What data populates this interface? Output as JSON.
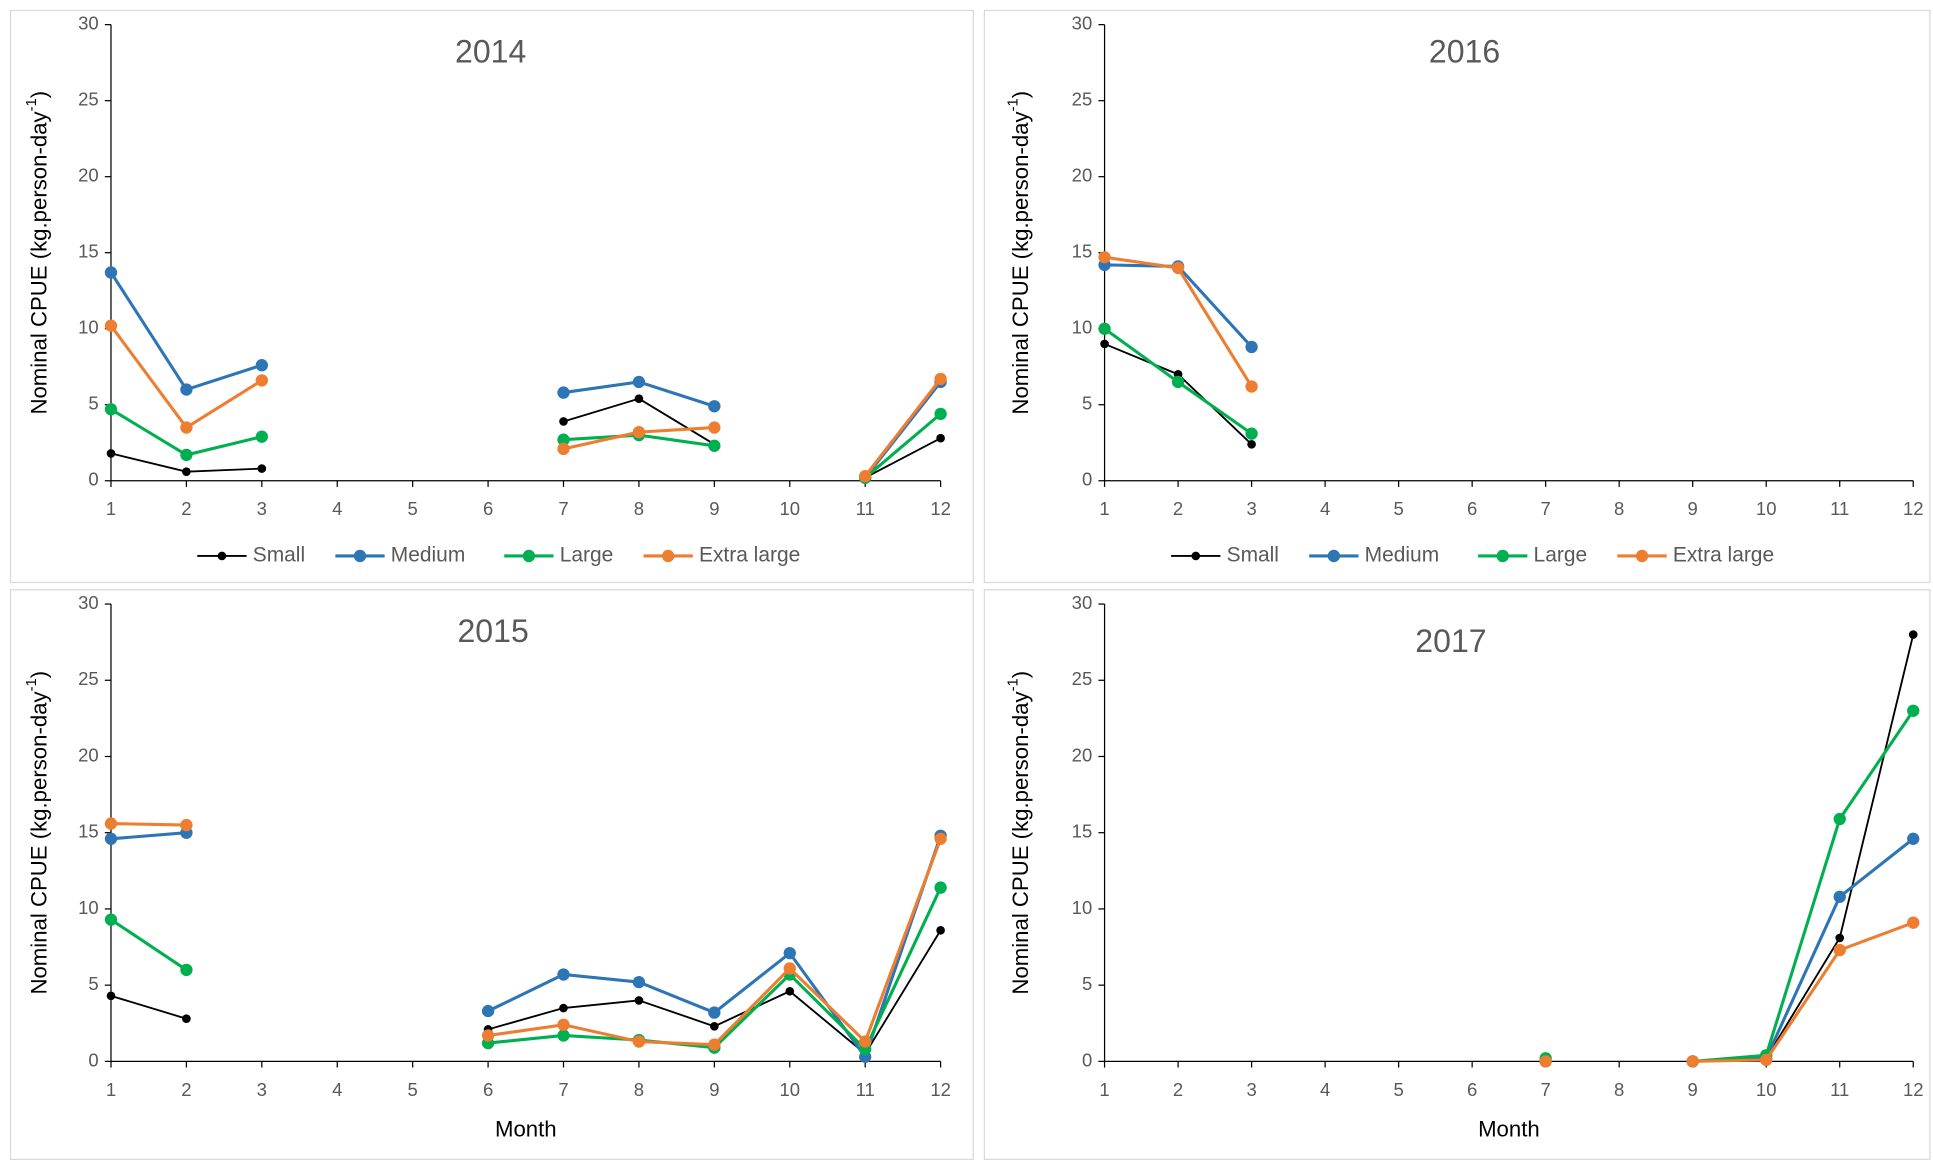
{
  "chart_data": [
    {
      "type": "line",
      "title": "2014",
      "legend": true,
      "ylabel": "Nominal CPUE (kg.person-day",
      "ylabel_sup": "-1",
      "ylabel_end": ")",
      "x": [
        1,
        2,
        3,
        4,
        5,
        6,
        7,
        8,
        9,
        10,
        11,
        12
      ],
      "xlim": [
        1,
        12
      ],
      "xticks": [
        1,
        2,
        3,
        4,
        5,
        6,
        7,
        8,
        9,
        10,
        11,
        12
      ],
      "ylim": [
        0,
        30
      ],
      "yticks": [
        0,
        5,
        10,
        15,
        20,
        25,
        30
      ],
      "series": [
        {
          "name": "Small",
          "color": "#000000",
          "values": [
            1.8,
            0.6,
            0.8,
            null,
            null,
            null,
            3.9,
            5.4,
            2.4,
            null,
            0.2,
            2.8
          ]
        },
        {
          "name": "Medium",
          "color": "#2e75b6",
          "values": [
            13.7,
            6.0,
            7.6,
            null,
            null,
            null,
            5.8,
            6.5,
            4.9,
            null,
            0.2,
            6.5
          ]
        },
        {
          "name": "Large",
          "color": "#00b050",
          "values": [
            4.7,
            1.7,
            2.9,
            null,
            null,
            null,
            2.7,
            3.0,
            2.3,
            null,
            0.2,
            4.4
          ]
        },
        {
          "name": "Extra large",
          "color": "#ed7d31",
          "values": [
            10.2,
            3.5,
            6.6,
            null,
            null,
            null,
            2.1,
            3.2,
            3.5,
            null,
            0.3,
            6.7
          ]
        }
      ]
    },
    {
      "type": "line",
      "title": "2016",
      "legend": true,
      "ylabel": "Nominal CPUE (kg.person-day",
      "ylabel_sup": "-1",
      "ylabel_end": ")",
      "x": [
        1,
        2,
        3,
        4,
        5,
        6,
        7,
        8,
        9,
        10,
        11,
        12
      ],
      "xlim": [
        1,
        12
      ],
      "xticks": [
        1,
        2,
        3,
        4,
        5,
        6,
        7,
        8,
        9,
        10,
        11,
        12
      ],
      "ylim": [
        0,
        30
      ],
      "yticks": [
        0,
        5,
        10,
        15,
        20,
        25,
        30
      ],
      "series": [
        {
          "name": "Small",
          "color": "#000000",
          "values": [
            9.0,
            7.0,
            2.4,
            null,
            null,
            null,
            null,
            null,
            null,
            null,
            null,
            null
          ]
        },
        {
          "name": "Medium",
          "color": "#2e75b6",
          "values": [
            14.2,
            14.1,
            8.8,
            null,
            null,
            null,
            null,
            null,
            null,
            null,
            null,
            null
          ]
        },
        {
          "name": "Large",
          "color": "#00b050",
          "values": [
            10.0,
            6.5,
            3.1,
            null,
            null,
            null,
            null,
            null,
            null,
            null,
            null,
            null
          ]
        },
        {
          "name": "Extra large",
          "color": "#ed7d31",
          "values": [
            14.7,
            14.0,
            6.2,
            null,
            null,
            null,
            null,
            null,
            null,
            null,
            null,
            null
          ]
        }
      ]
    },
    {
      "type": "line",
      "title": "2015",
      "legend": false,
      "xlabel": "Month",
      "ylabel": "Nominal CPUE (kg.person-day",
      "ylabel_sup": "-1",
      "ylabel_end": ")",
      "x": [
        1,
        2,
        3,
        4,
        5,
        6,
        7,
        8,
        9,
        10,
        11,
        12
      ],
      "xlim": [
        1,
        12
      ],
      "xticks": [
        1,
        2,
        3,
        4,
        5,
        6,
        7,
        8,
        9,
        10,
        11,
        12
      ],
      "ylim": [
        0,
        30
      ],
      "yticks": [
        0,
        5,
        10,
        15,
        20,
        25,
        30
      ],
      "series": [
        {
          "name": "Small",
          "color": "#000000",
          "values": [
            4.3,
            2.8,
            null,
            null,
            null,
            2.1,
            3.5,
            4.0,
            2.3,
            4.6,
            0.5,
            8.6
          ]
        },
        {
          "name": "Medium",
          "color": "#2e75b6",
          "values": [
            14.6,
            15.0,
            null,
            null,
            null,
            3.3,
            5.7,
            5.2,
            3.2,
            7.1,
            0.3,
            14.8
          ]
        },
        {
          "name": "Large",
          "color": "#00b050",
          "values": [
            9.3,
            6.0,
            null,
            null,
            null,
            1.2,
            1.7,
            1.4,
            0.9,
            5.7,
            0.8,
            11.4
          ]
        },
        {
          "name": "Extra large",
          "color": "#ed7d31",
          "values": [
            15.6,
            15.5,
            null,
            null,
            null,
            1.7,
            2.4,
            1.3,
            1.1,
            6.1,
            1.3,
            14.6
          ]
        }
      ]
    },
    {
      "type": "line",
      "title": "2017",
      "legend": false,
      "xlabel": "Month",
      "ylabel": "Nominal CPUE (kg.person-day",
      "ylabel_sup": "-1",
      "ylabel_end": ")",
      "x": [
        1,
        2,
        3,
        4,
        5,
        6,
        7,
        8,
        9,
        10,
        11,
        12
      ],
      "xlim": [
        1,
        12
      ],
      "xticks": [
        1,
        2,
        3,
        4,
        5,
        6,
        7,
        8,
        9,
        10,
        11,
        12
      ],
      "ylim": [
        0,
        30
      ],
      "yticks": [
        0,
        5,
        10,
        15,
        20,
        25,
        30
      ],
      "series": [
        {
          "name": "Small",
          "color": "#000000",
          "values": [
            null,
            null,
            null,
            null,
            null,
            null,
            0,
            null,
            0,
            0.2,
            8.1,
            28.0
          ]
        },
        {
          "name": "Medium",
          "color": "#2e75b6",
          "values": [
            null,
            null,
            null,
            null,
            null,
            null,
            0,
            null,
            0,
            0.2,
            10.8,
            14.6
          ]
        },
        {
          "name": "Large",
          "color": "#00b050",
          "values": [
            null,
            null,
            null,
            null,
            null,
            null,
            0.2,
            null,
            0,
            0.4,
            15.9,
            23.0
          ]
        },
        {
          "name": "Extra large",
          "color": "#ed7d31",
          "values": [
            null,
            null,
            null,
            null,
            null,
            null,
            0,
            null,
            0,
            0.1,
            7.3,
            9.1
          ]
        }
      ]
    }
  ]
}
